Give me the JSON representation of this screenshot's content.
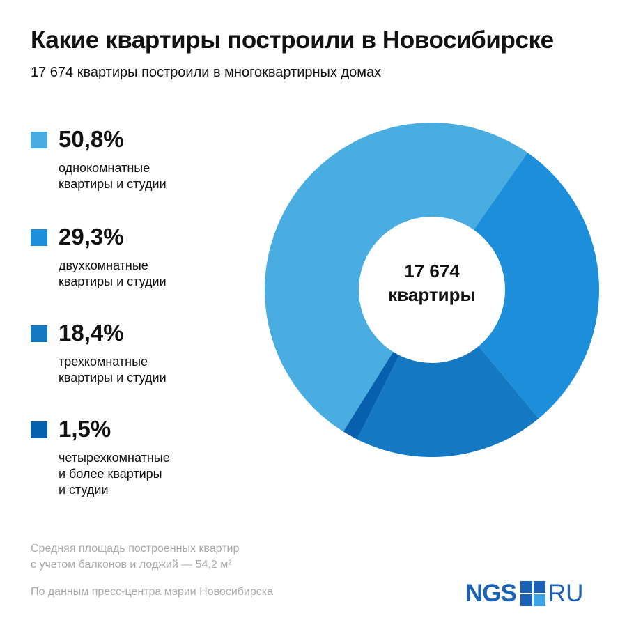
{
  "title": "Какие квартиры построили в Новосибирске",
  "subtitle": "17 674 квартиры построили в многоквартирных домах",
  "chart_data": {
    "type": "pie",
    "variant": "donut",
    "categories": [
      "однокомнатные\nквартиры и студии",
      "двухкомнатные\nквартиры и студии",
      "трехкомнатные\nквартиры и студии",
      "четырехкомнатные\nи более квартиры\nи студии"
    ],
    "values": [
      50.8,
      29.3,
      18.4,
      1.5
    ],
    "value_labels": [
      "50,8%",
      "29,3%",
      "18,4%",
      "1,5%"
    ],
    "colors": [
      "#4aade2",
      "#1d8fda",
      "#1478c2",
      "#075fae"
    ],
    "center_label": [
      "17 674",
      "квартиры"
    ],
    "legend_position": "left"
  },
  "footnote": "Средняя площадь построенных квартир\nс учетом балконов и лоджий — 54,2 м²",
  "source": "По данным пресс-центра мэрии Новосибирска",
  "logo": {
    "left": "NGS",
    "right": "RU",
    "color": "#1b61b6",
    "mark_colors": [
      "#1b61b6",
      "#1b61b6",
      "#1b61b6",
      "#3ea4e8"
    ]
  }
}
